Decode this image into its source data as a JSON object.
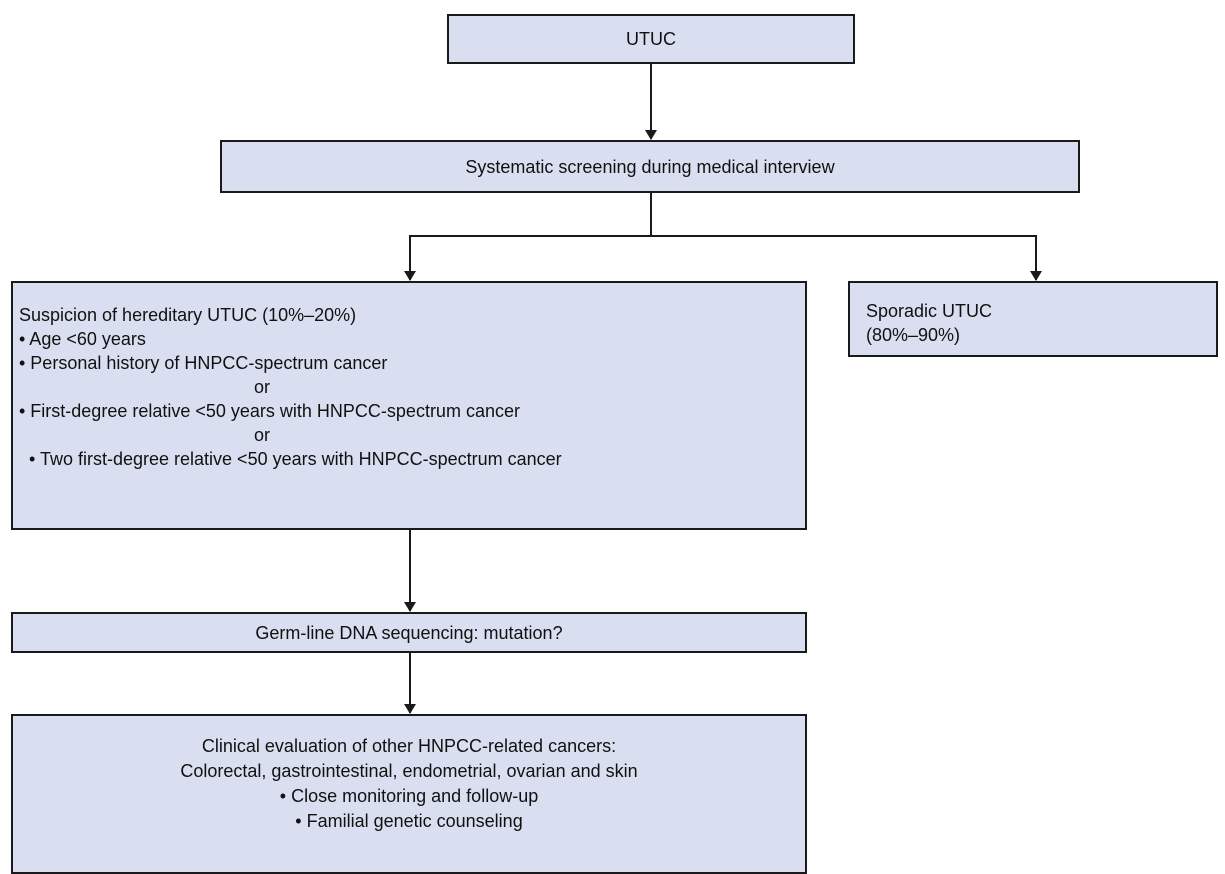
{
  "nodes": {
    "utuc": {
      "label": "UTUC"
    },
    "screening": {
      "label": "Systematic screening during medical interview"
    },
    "suspicion": {
      "title": "Suspicion of hereditary UTUC (10%–20%)",
      "criteria": [
        "• Age <60 years",
        "• Personal history of HNPCC-spectrum cancer",
        "or",
        "• First-degree relative <50 years with HNPCC-spectrum cancer",
        "or",
        "• Two first-degree relative <50 years with HNPCC-spectrum cancer"
      ]
    },
    "sporadic": {
      "title": "Sporadic UTUC",
      "percent": "(80%–90%)"
    },
    "germline": {
      "label": "Germ-line DNA sequencing: mutation?"
    },
    "clinical": {
      "lines": [
        "Clinical evaluation of other HNPCC-related cancers:",
        "Colorectal, gastrointestinal, endometrial, ovarian and skin",
        "• Close monitoring and follow-up",
        "• Familial genetic counseling"
      ]
    }
  },
  "edges": [
    {
      "from": "utuc",
      "to": "screening"
    },
    {
      "from": "screening",
      "to": "suspicion"
    },
    {
      "from": "screening",
      "to": "sporadic"
    },
    {
      "from": "suspicion",
      "to": "germline"
    },
    {
      "from": "germline",
      "to": "clinical"
    }
  ],
  "colors": {
    "box_fill": "#d9dff0",
    "box_border": "#1a1a1a",
    "connector": "#1a1a1a"
  }
}
